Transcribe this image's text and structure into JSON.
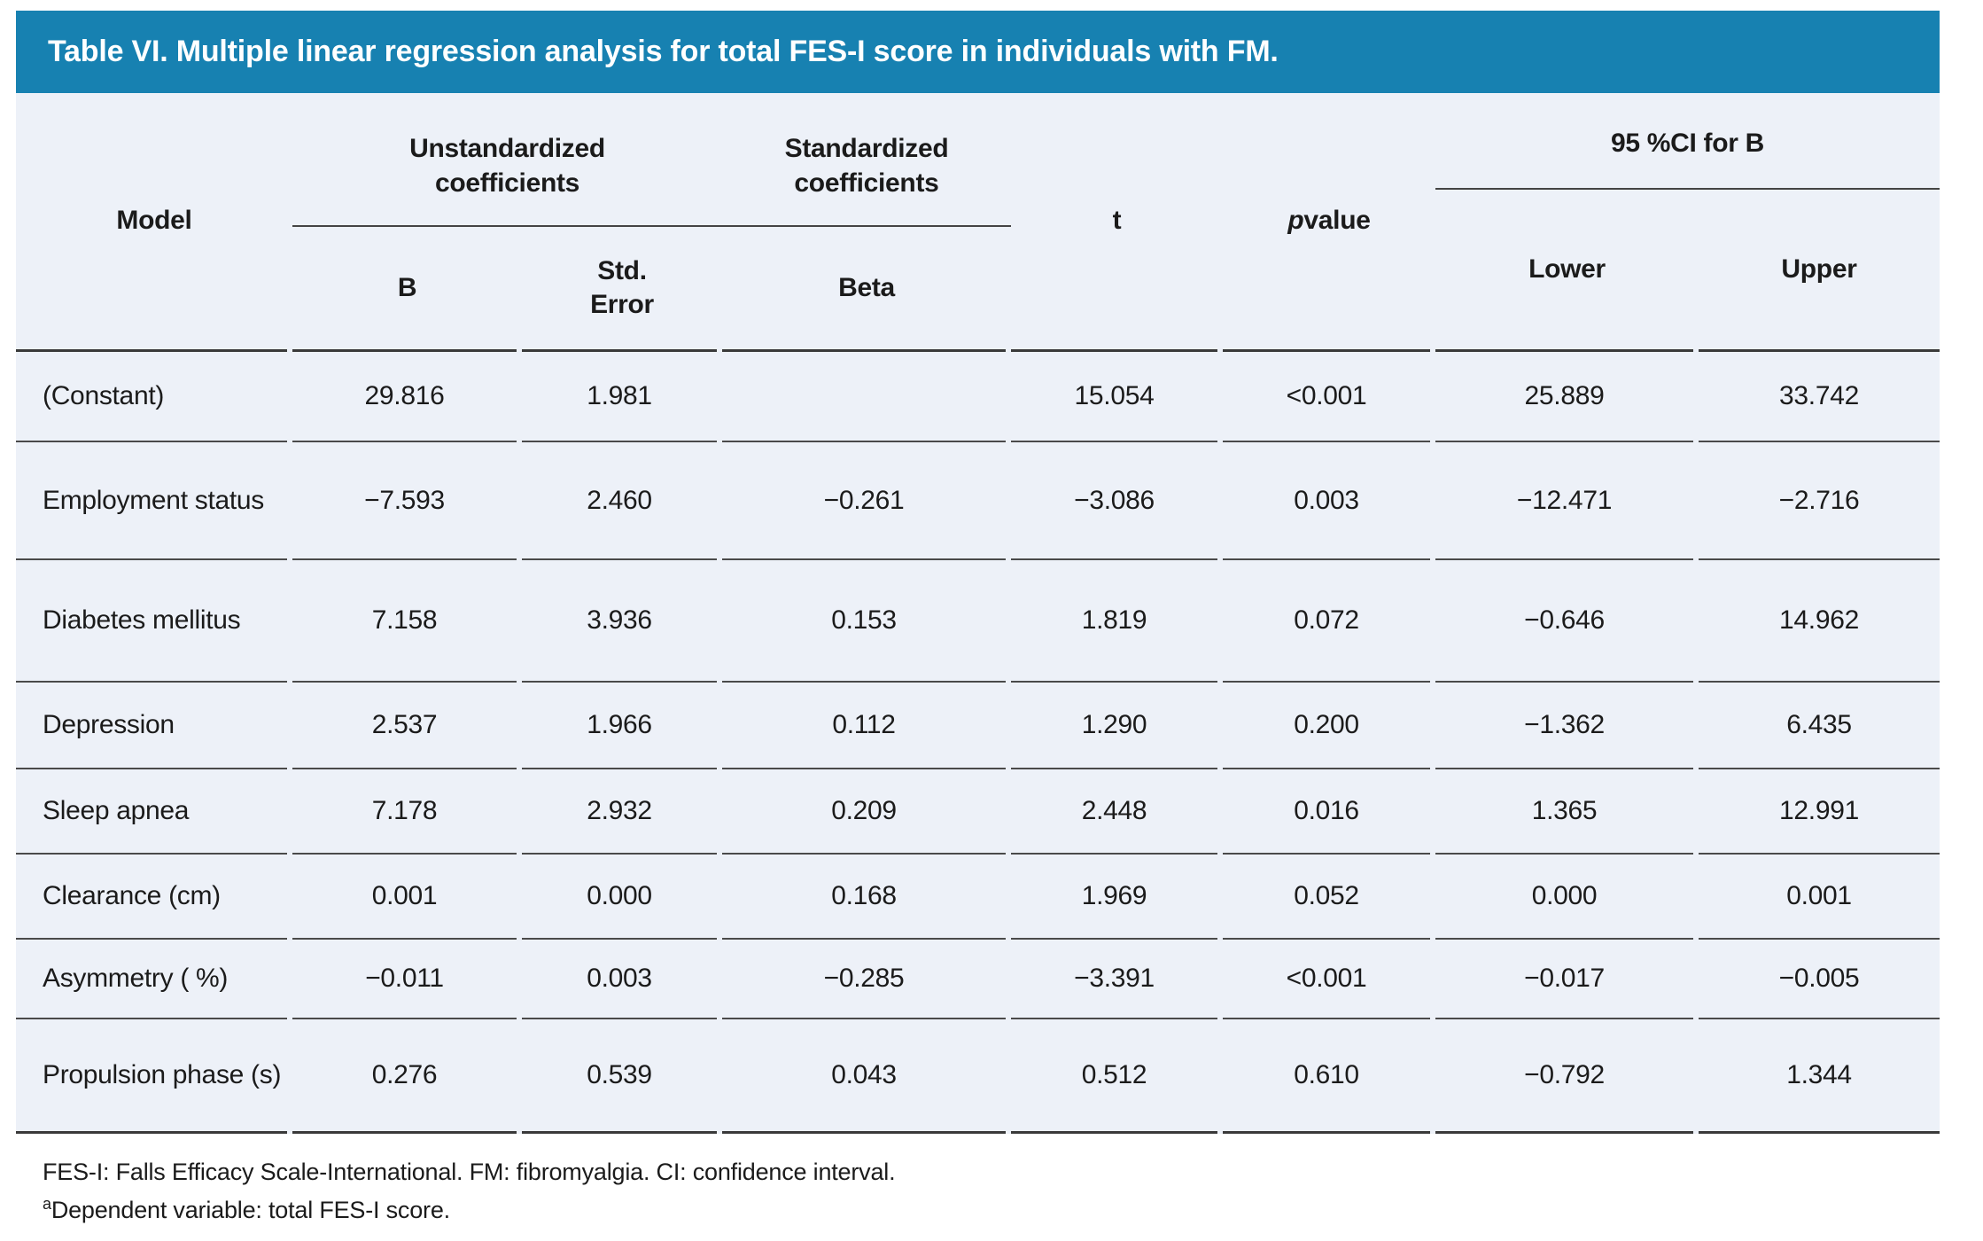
{
  "title": "Table VI. Multiple linear regression analysis for total FES-I score in individuals with FM.",
  "header": {
    "model": "Model",
    "group_unstandardized": "Unstandardized\ncoefficients",
    "group_standardized": "Standardized\ncoefficients",
    "t": "t",
    "p_italic": "p",
    "p_rest": " value",
    "group_ci": "95 %CI for B",
    "sub_b": "B",
    "sub_std_error": "Std.\nError",
    "sub_beta": "Beta",
    "sub_lower": "Lower",
    "sub_upper": "Upper"
  },
  "rows": [
    {
      "model": "(Constant)",
      "b": "29.816",
      "std_error": "1.981",
      "beta": "",
      "t": "15.054",
      "p": "<0.001",
      "lower": "25.889",
      "upper": "33.742"
    },
    {
      "model": "Employment status",
      "b": "−7.593",
      "std_error": "2.460",
      "beta": "−0.261",
      "t": "−3.086",
      "p": "0.003",
      "lower": "−12.471",
      "upper": "−2.716"
    },
    {
      "model": "Diabetes mellitus",
      "b": "7.158",
      "std_error": "3.936",
      "beta": "0.153",
      "t": "1.819",
      "p": "0.072",
      "lower": "−0.646",
      "upper": "14.962"
    },
    {
      "model": "Depression",
      "b": "2.537",
      "std_error": "1.966",
      "beta": "0.112",
      "t": "1.290",
      "p": "0.200",
      "lower": "−1.362",
      "upper": "6.435"
    },
    {
      "model": "Sleep apnea",
      "b": "7.178",
      "std_error": "2.932",
      "beta": "0.209",
      "t": "2.448",
      "p": "0.016",
      "lower": "1.365",
      "upper": "12.991"
    },
    {
      "model": "Clearance (cm)",
      "b": "0.001",
      "std_error": "0.000",
      "beta": "0.168",
      "t": "1.969",
      "p": "0.052",
      "lower": "0.000",
      "upper": "0.001"
    },
    {
      "model": "Asymmetry ( %)",
      "b": "−0.011",
      "std_error": "0.003",
      "beta": "−0.285",
      "t": "−3.391",
      "p": "<0.001",
      "lower": "−0.017",
      "upper": "−0.005"
    },
    {
      "model": "Propulsion phase (s)",
      "b": "0.276",
      "std_error": "0.539",
      "beta": "0.043",
      "t": "0.512",
      "p": "0.610",
      "lower": "−0.792",
      "upper": "1.344"
    }
  ],
  "footnotes": {
    "line1": "FES-I: Falls Efficacy Scale-International. FM: fibromyalgia. CI: confidence interval.",
    "line2_sup": "a",
    "line2_text": "Dependent variable: total FES-I score."
  },
  "colors": {
    "title_bar": "#1781B1",
    "table_background": "#EDF1F8",
    "rule_strong": "#3A3A3A",
    "rule_row": "#4A4A4A",
    "text": "#1B1B1B",
    "title_text": "#FFFFFF"
  }
}
